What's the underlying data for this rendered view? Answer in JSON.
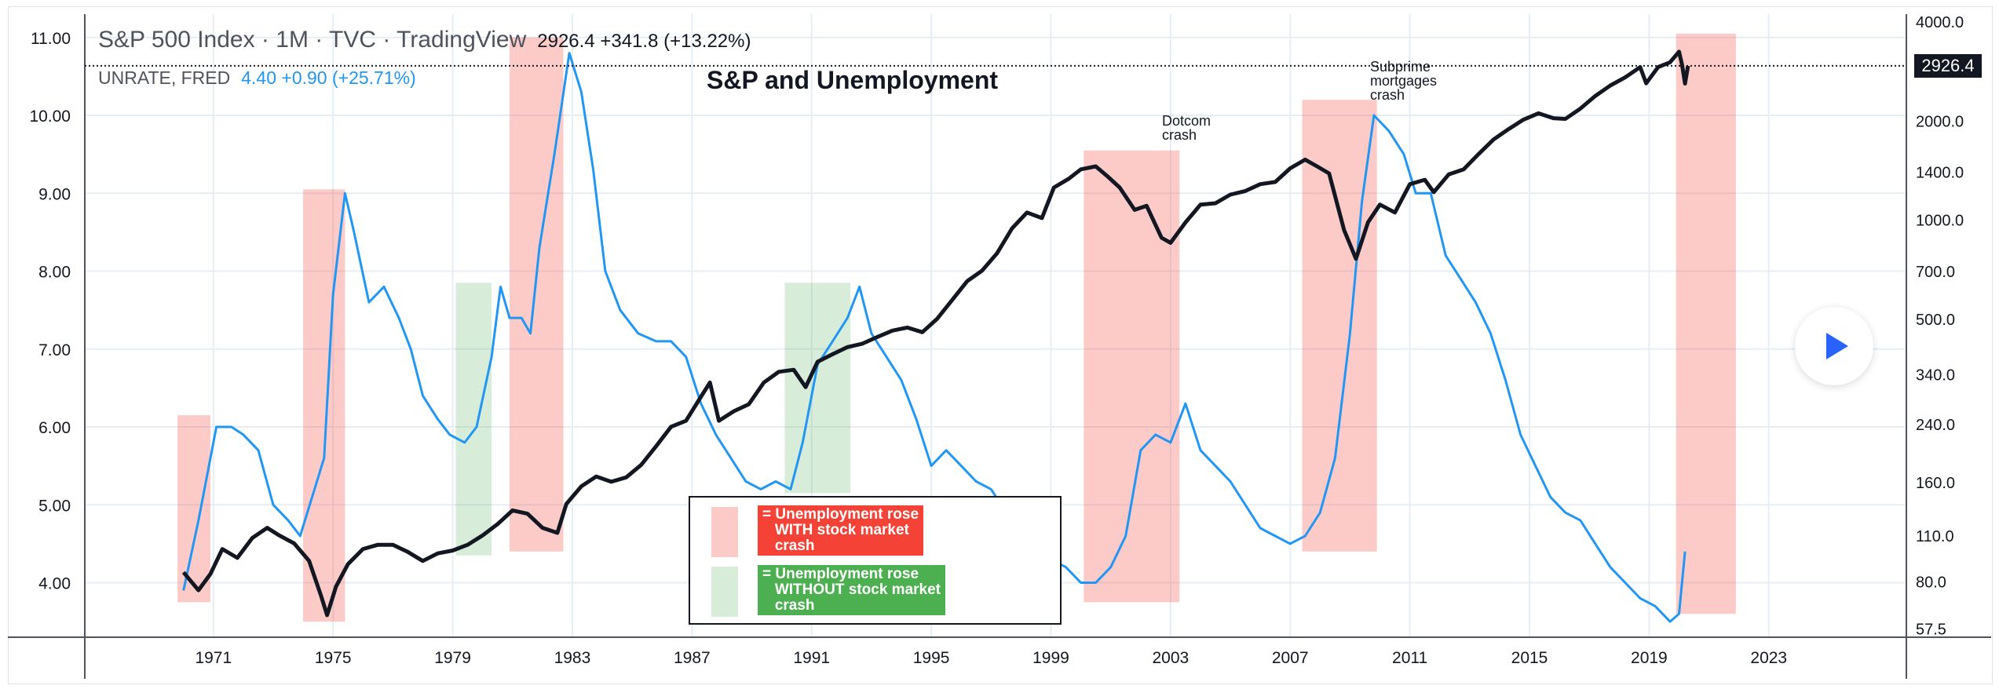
{
  "header": {
    "symbol_line": "S&P 500 Index · 1M · TVC · TradingView",
    "symbol_values": "2926.4 +341.8 (+13.22%)",
    "unrate_name": "UNRATE, FRED",
    "unrate_values": "4.40 +0.90 (+25.71%)",
    "price_tag": "2926.4"
  },
  "chart_data": {
    "type": "line",
    "title": "S&P and Unemployment",
    "x_ticks": [
      "1971",
      "1975",
      "1979",
      "1983",
      "1987",
      "1991",
      "1995",
      "1999",
      "2003",
      "2007",
      "2011",
      "2015",
      "2019",
      "2023"
    ],
    "left_axis_ticks": [
      "11.00",
      "10.00",
      "9.00",
      "8.00",
      "7.00",
      "6.00",
      "5.00",
      "4.00"
    ],
    "right_axis_ticks": [
      "4000.0",
      "2000.0",
      "1400.0",
      "1000.0",
      "700.0",
      "500.0",
      "340.0",
      "240.0",
      "160.0",
      "110.0",
      "80.0",
      "57.5"
    ],
    "left_axis_range": [
      3.3,
      11.3
    ],
    "right_axis_scale": "log",
    "right_axis_range": [
      54,
      4200
    ],
    "x_range": [
      1966.7,
      2027.6
    ],
    "legend_placement": "bottom-center",
    "grid": true,
    "series": [
      {
        "name": "UNRATE",
        "axis": "left",
        "color": "#2196f3",
        "points": [
          [
            1970.0,
            3.9
          ],
          [
            1970.5,
            4.8
          ],
          [
            1970.9,
            5.6
          ],
          [
            1971.1,
            6.0
          ],
          [
            1971.6,
            6.0
          ],
          [
            1972.0,
            5.9
          ],
          [
            1972.5,
            5.7
          ],
          [
            1973.0,
            5.0
          ],
          [
            1973.5,
            4.8
          ],
          [
            1973.9,
            4.6
          ],
          [
            1974.3,
            5.1
          ],
          [
            1974.7,
            5.6
          ],
          [
            1975.0,
            7.7
          ],
          [
            1975.4,
            9.0
          ],
          [
            1975.7,
            8.5
          ],
          [
            1976.2,
            7.6
          ],
          [
            1976.7,
            7.8
          ],
          [
            1977.2,
            7.4
          ],
          [
            1977.6,
            7.0
          ],
          [
            1978.0,
            6.4
          ],
          [
            1978.5,
            6.1
          ],
          [
            1978.9,
            5.9
          ],
          [
            1979.4,
            5.8
          ],
          [
            1979.8,
            6.0
          ],
          [
            1980.3,
            6.9
          ],
          [
            1980.6,
            7.8
          ],
          [
            1980.9,
            7.4
          ],
          [
            1981.3,
            7.4
          ],
          [
            1981.6,
            7.2
          ],
          [
            1981.9,
            8.3
          ],
          [
            1982.4,
            9.5
          ],
          [
            1982.9,
            10.8
          ],
          [
            1983.3,
            10.3
          ],
          [
            1983.7,
            9.3
          ],
          [
            1984.1,
            8.0
          ],
          [
            1984.6,
            7.5
          ],
          [
            1985.2,
            7.2
          ],
          [
            1985.8,
            7.1
          ],
          [
            1986.3,
            7.1
          ],
          [
            1986.8,
            6.9
          ],
          [
            1987.3,
            6.3
          ],
          [
            1987.8,
            5.9
          ],
          [
            1988.3,
            5.6
          ],
          [
            1988.8,
            5.3
          ],
          [
            1989.3,
            5.2
          ],
          [
            1989.8,
            5.3
          ],
          [
            1990.3,
            5.2
          ],
          [
            1990.7,
            5.8
          ],
          [
            1991.2,
            6.8
          ],
          [
            1991.7,
            7.1
          ],
          [
            1992.2,
            7.4
          ],
          [
            1992.6,
            7.8
          ],
          [
            1993.0,
            7.2
          ],
          [
            1993.5,
            6.9
          ],
          [
            1994.0,
            6.6
          ],
          [
            1994.5,
            6.1
          ],
          [
            1995.0,
            5.5
          ],
          [
            1995.5,
            5.7
          ],
          [
            1996.0,
            5.5
          ],
          [
            1996.5,
            5.3
          ],
          [
            1997.0,
            5.2
          ],
          [
            1997.5,
            4.9
          ],
          [
            1998.0,
            4.6
          ],
          [
            1998.5,
            4.5
          ],
          [
            1999.0,
            4.3
          ],
          [
            1999.5,
            4.2
          ],
          [
            2000.0,
            4.0
          ],
          [
            2000.5,
            4.0
          ],
          [
            2001.0,
            4.2
          ],
          [
            2001.5,
            4.6
          ],
          [
            2002.0,
            5.7
          ],
          [
            2002.5,
            5.9
          ],
          [
            2003.0,
            5.8
          ],
          [
            2003.5,
            6.3
          ],
          [
            2004.0,
            5.7
          ],
          [
            2004.5,
            5.5
          ],
          [
            2005.0,
            5.3
          ],
          [
            2005.5,
            5.0
          ],
          [
            2006.0,
            4.7
          ],
          [
            2006.5,
            4.6
          ],
          [
            2007.0,
            4.5
          ],
          [
            2007.5,
            4.6
          ],
          [
            2008.0,
            4.9
          ],
          [
            2008.5,
            5.6
          ],
          [
            2009.0,
            7.2
          ],
          [
            2009.4,
            8.9
          ],
          [
            2009.8,
            10.0
          ],
          [
            2010.3,
            9.8
          ],
          [
            2010.8,
            9.5
          ],
          [
            2011.2,
            9.0
          ],
          [
            2011.7,
            9.0
          ],
          [
            2012.2,
            8.2
          ],
          [
            2012.7,
            7.9
          ],
          [
            2013.2,
            7.6
          ],
          [
            2013.7,
            7.2
          ],
          [
            2014.2,
            6.6
          ],
          [
            2014.7,
            5.9
          ],
          [
            2015.2,
            5.5
          ],
          [
            2015.7,
            5.1
          ],
          [
            2016.2,
            4.9
          ],
          [
            2016.7,
            4.8
          ],
          [
            2017.2,
            4.5
          ],
          [
            2017.7,
            4.2
          ],
          [
            2018.2,
            4.0
          ],
          [
            2018.7,
            3.8
          ],
          [
            2019.2,
            3.7
          ],
          [
            2019.7,
            3.5
          ],
          [
            2020.0,
            3.6
          ],
          [
            2020.2,
            4.4
          ]
        ]
      },
      {
        "name": "S&P 500 Index",
        "axis": "right",
        "color": "#131722",
        "points": [
          [
            1970.0,
            85
          ],
          [
            1970.5,
            75
          ],
          [
            1970.9,
            84
          ],
          [
            1971.3,
            100
          ],
          [
            1971.8,
            94
          ],
          [
            1972.3,
            108
          ],
          [
            1972.8,
            116
          ],
          [
            1973.2,
            110
          ],
          [
            1973.7,
            104
          ],
          [
            1974.2,
            92
          ],
          [
            1974.6,
            72
          ],
          [
            1974.8,
            63
          ],
          [
            1975.1,
            77
          ],
          [
            1975.5,
            90
          ],
          [
            1976.0,
            100
          ],
          [
            1976.5,
            103
          ],
          [
            1977.0,
            103
          ],
          [
            1977.5,
            98
          ],
          [
            1978.0,
            92
          ],
          [
            1978.5,
            97
          ],
          [
            1979.0,
            99
          ],
          [
            1979.5,
            103
          ],
          [
            1980.0,
            110
          ],
          [
            1980.5,
            119
          ],
          [
            1981.0,
            131
          ],
          [
            1981.5,
            128
          ],
          [
            1982.0,
            116
          ],
          [
            1982.5,
            112
          ],
          [
            1982.8,
            137
          ],
          [
            1983.3,
            155
          ],
          [
            1983.8,
            166
          ],
          [
            1984.3,
            160
          ],
          [
            1984.8,
            165
          ],
          [
            1985.3,
            180
          ],
          [
            1985.8,
            205
          ],
          [
            1986.3,
            235
          ],
          [
            1986.8,
            245
          ],
          [
            1987.3,
            290
          ],
          [
            1987.6,
            320
          ],
          [
            1987.9,
            245
          ],
          [
            1988.4,
            262
          ],
          [
            1988.9,
            275
          ],
          [
            1989.4,
            320
          ],
          [
            1989.9,
            345
          ],
          [
            1990.4,
            350
          ],
          [
            1990.8,
            310
          ],
          [
            1991.2,
            370
          ],
          [
            1991.7,
            390
          ],
          [
            1992.2,
            410
          ],
          [
            1992.7,
            420
          ],
          [
            1993.2,
            440
          ],
          [
            1993.7,
            460
          ],
          [
            1994.2,
            470
          ],
          [
            1994.7,
            455
          ],
          [
            1995.2,
            500
          ],
          [
            1995.7,
            570
          ],
          [
            1996.2,
            650
          ],
          [
            1996.7,
            700
          ],
          [
            1997.2,
            790
          ],
          [
            1997.7,
            940
          ],
          [
            1998.2,
            1050
          ],
          [
            1998.7,
            1010
          ],
          [
            1999.1,
            1250
          ],
          [
            1999.6,
            1330
          ],
          [
            2000.0,
            1420
          ],
          [
            2000.5,
            1450
          ],
          [
            2000.9,
            1350
          ],
          [
            2001.3,
            1250
          ],
          [
            2001.8,
            1070
          ],
          [
            2002.2,
            1100
          ],
          [
            2002.7,
            880
          ],
          [
            2003.0,
            850
          ],
          [
            2003.5,
            980
          ],
          [
            2004.0,
            1110
          ],
          [
            2004.5,
            1120
          ],
          [
            2005.0,
            1190
          ],
          [
            2005.5,
            1220
          ],
          [
            2006.0,
            1280
          ],
          [
            2006.5,
            1300
          ],
          [
            2007.0,
            1430
          ],
          [
            2007.5,
            1520
          ],
          [
            2007.9,
            1450
          ],
          [
            2008.3,
            1380
          ],
          [
            2008.8,
            930
          ],
          [
            2009.2,
            760
          ],
          [
            2009.6,
            980
          ],
          [
            2010.0,
            1110
          ],
          [
            2010.5,
            1050
          ],
          [
            2011.0,
            1280
          ],
          [
            2011.5,
            1320
          ],
          [
            2011.8,
            1210
          ],
          [
            2012.3,
            1370
          ],
          [
            2012.8,
            1420
          ],
          [
            2013.3,
            1580
          ],
          [
            2013.8,
            1750
          ],
          [
            2014.3,
            1880
          ],
          [
            2014.8,
            2010
          ],
          [
            2015.3,
            2100
          ],
          [
            2015.8,
            2030
          ],
          [
            2016.2,
            2020
          ],
          [
            2016.7,
            2170
          ],
          [
            2017.2,
            2370
          ],
          [
            2017.7,
            2550
          ],
          [
            2018.2,
            2700
          ],
          [
            2018.7,
            2900
          ],
          [
            2018.9,
            2590
          ],
          [
            2019.3,
            2900
          ],
          [
            2019.7,
            3000
          ],
          [
            2020.0,
            3230
          ],
          [
            2020.1,
            2950
          ],
          [
            2020.2,
            2585
          ],
          [
            2020.3,
            2926
          ]
        ]
      }
    ],
    "regions": [
      {
        "kind": "with",
        "x0": 1969.8,
        "x1": 1970.9,
        "y0": 3.75,
        "y1": 6.15
      },
      {
        "kind": "with",
        "x0": 1974.0,
        "x1": 1975.4,
        "y0": 3.5,
        "y1": 9.05
      },
      {
        "kind": "without",
        "x0": 1979.1,
        "x1": 1980.3,
        "y0": 4.35,
        "y1": 7.85
      },
      {
        "kind": "with",
        "x0": 1980.9,
        "x1": 1982.7,
        "y0": 4.4,
        "y1": 11.0
      },
      {
        "kind": "without",
        "x0": 1990.1,
        "x1": 1992.3,
        "y0": 5.15,
        "y1": 7.85
      },
      {
        "kind": "with",
        "x0": 2000.1,
        "x1": 2003.3,
        "y0": 3.75,
        "y1": 9.55
      },
      {
        "kind": "with",
        "x0": 2007.4,
        "x1": 2009.9,
        "y0": 4.4,
        "y1": 10.2
      },
      {
        "kind": "with",
        "x0": 2019.9,
        "x1": 2021.9,
        "y0": 3.6,
        "y1": 11.05
      }
    ],
    "annotations": [
      {
        "id": "dotcom",
        "text": "Dotcom\ncrash"
      },
      {
        "id": "subprime",
        "text": "Subprime\nmortgages\ncrash"
      }
    ],
    "legend": [
      {
        "kind": "with",
        "label": "= Unemployment rose\n   WITH stock market\n   crash",
        "color": "#f44336"
      },
      {
        "kind": "without",
        "label": "= Unemployment rose\n   WITHOUT stock market\n   crash",
        "color": "#4caf50"
      }
    ]
  }
}
